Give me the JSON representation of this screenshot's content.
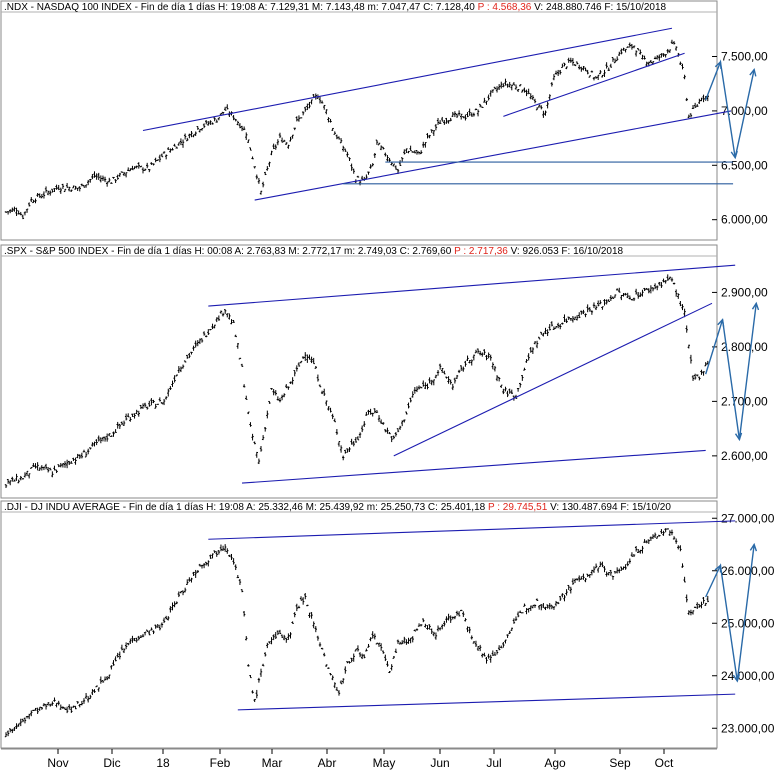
{
  "colors": {
    "price": "#000000",
    "trend": "#1c1cb0",
    "level": "#2a5c9e",
    "projection": "#2a6aa8",
    "header_red": "#e0241b"
  },
  "x_axis": {
    "labels": [
      "Nov",
      "Dic",
      "18",
      "Feb",
      "Mar",
      "Abr",
      "May",
      "Jun",
      "Jul",
      "Ago",
      "Sep",
      "Oct"
    ]
  },
  "chart_data": [
    {
      "type": "ohlc",
      "header": {
        "symbol": ".NDX",
        "name": "NASDAQ 100 INDEX",
        "period": "Fin de día 1 días",
        "h": "H: 19:08",
        "a": "A: 7.129,31",
        "m": "M: 7.143,48",
        "min": "m: 7.047,47",
        "c": "C: 7.128,40",
        "p": "P : 4.568,36",
        "v": "V: 248.880.746",
        "f": "F: 15/10/2018"
      },
      "ylim": [
        5850,
        7900
      ],
      "y_ticks": [
        {
          "v": 6000,
          "label": "6.000,00"
        },
        {
          "v": 6500,
          "label": "6.500,00"
        },
        {
          "v": 7000,
          "label": "7.000,00"
        },
        {
          "v": 7500,
          "label": "7.500,00"
        }
      ],
      "path": [
        [
          0,
          6070
        ],
        [
          5,
          6100
        ],
        [
          8,
          6030
        ],
        [
          12,
          6180
        ],
        [
          25,
          6300
        ],
        [
          35,
          6290
        ],
        [
          42,
          6400
        ],
        [
          50,
          6350
        ],
        [
          60,
          6480
        ],
        [
          68,
          6470
        ],
        [
          75,
          6600
        ],
        [
          82,
          6700
        ],
        [
          92,
          6850
        ],
        [
          100,
          6920
        ],
        [
          104,
          7010
        ],
        [
          108,
          6950
        ],
        [
          114,
          6800
        ],
        [
          118,
          6500
        ],
        [
          121,
          6250
        ],
        [
          126,
          6600
        ],
        [
          130,
          6750
        ],
        [
          134,
          6700
        ],
        [
          138,
          6900
        ],
        [
          144,
          7050
        ],
        [
          148,
          7150
        ],
        [
          152,
          7000
        ],
        [
          156,
          6800
        ],
        [
          162,
          6600
        ],
        [
          166,
          6380
        ],
        [
          170,
          6350
        ],
        [
          174,
          6500
        ],
        [
          176,
          6700
        ],
        [
          182,
          6560
        ],
        [
          186,
          6450
        ],
        [
          190,
          6650
        ],
        [
          196,
          6600
        ],
        [
          200,
          6750
        ],
        [
          206,
          6900
        ],
        [
          212,
          6950
        ],
        [
          218,
          6950
        ],
        [
          224,
          7000
        ],
        [
          230,
          7150
        ],
        [
          236,
          7250
        ],
        [
          242,
          7230
        ],
        [
          246,
          7200
        ],
        [
          252,
          7050
        ],
        [
          256,
          6980
        ],
        [
          260,
          7300
        ],
        [
          264,
          7400
        ],
        [
          268,
          7450
        ],
        [
          274,
          7400
        ],
        [
          280,
          7300
        ],
        [
          286,
          7400
        ],
        [
          292,
          7550
        ],
        [
          298,
          7600
        ],
        [
          302,
          7480
        ],
        [
          306,
          7450
        ],
        [
          312,
          7520
        ],
        [
          316,
          7600
        ],
        [
          318,
          7590
        ],
        [
          322,
          7300
        ],
        [
          324,
          6950
        ],
        [
          328,
          7050
        ],
        [
          330,
          7130
        ]
      ],
      "trendlines": [
        {
          "from": [
            65,
            6820
          ],
          "to": [
            316,
            7760
          ]
        },
        {
          "from": [
            118,
            6180
          ],
          "to": [
            344,
            7000
          ]
        },
        {
          "from": [
            236,
            6950
          ],
          "to": [
            322,
            7530
          ]
        }
      ],
      "levels": [
        {
          "from": [
            160,
            6330
          ],
          "to": [
            345,
            6330
          ]
        },
        {
          "from": [
            180,
            6530
          ],
          "to": [
            345,
            6530
          ]
        }
      ],
      "projection": [
        [
          332,
          7100
        ],
        [
          339,
          7450
        ],
        [
          346,
          6570
        ],
        [
          355,
          7380
        ]
      ]
    },
    {
      "type": "ohlc",
      "header": {
        "symbol": ".SPX",
        "name": "S&P 500 INDEX",
        "period": "Fin de día 1 días",
        "h": "H: 00:08",
        "a": "A: 2.763,83",
        "m": "M: 2.772,17",
        "min": "m: 2.749,03",
        "c": "C: 2.769,60",
        "p": "P : 2.717,36",
        "v": "V: 926.053",
        "f": "F: 16/10/2018"
      },
      "ylim": [
        2530,
        2965
      ],
      "y_ticks": [
        {
          "v": 2600,
          "label": "2.600,00"
        },
        {
          "v": 2700,
          "label": "2.700,00"
        },
        {
          "v": 2800,
          "label": "2.800,00"
        },
        {
          "v": 2900,
          "label": "2.900,00"
        }
      ],
      "path": [
        [
          0,
          2550
        ],
        [
          8,
          2560
        ],
        [
          14,
          2580
        ],
        [
          22,
          2570
        ],
        [
          30,
          2590
        ],
        [
          36,
          2600
        ],
        [
          42,
          2620
        ],
        [
          50,
          2640
        ],
        [
          58,
          2670
        ],
        [
          66,
          2690
        ],
        [
          75,
          2700
        ],
        [
          82,
          2760
        ],
        [
          90,
          2800
        ],
        [
          98,
          2840
        ],
        [
          104,
          2870
        ],
        [
          108,
          2840
        ],
        [
          112,
          2760
        ],
        [
          116,
          2650
        ],
        [
          120,
          2590
        ],
        [
          126,
          2720
        ],
        [
          130,
          2700
        ],
        [
          136,
          2740
        ],
        [
          142,
          2790
        ],
        [
          146,
          2770
        ],
        [
          150,
          2720
        ],
        [
          156,
          2660
        ],
        [
          160,
          2600
        ],
        [
          164,
          2620
        ],
        [
          168,
          2640
        ],
        [
          172,
          2680
        ],
        [
          176,
          2680
        ],
        [
          180,
          2650
        ],
        [
          184,
          2630
        ],
        [
          188,
          2660
        ],
        [
          194,
          2720
        ],
        [
          200,
          2730
        ],
        [
          206,
          2760
        ],
        [
          212,
          2730
        ],
        [
          218,
          2770
        ],
        [
          224,
          2790
        ],
        [
          230,
          2780
        ],
        [
          236,
          2720
        ],
        [
          242,
          2710
        ],
        [
          246,
          2760
        ],
        [
          250,
          2800
        ],
        [
          256,
          2830
        ],
        [
          262,
          2840
        ],
        [
          266,
          2850
        ],
        [
          272,
          2860
        ],
        [
          278,
          2870
        ],
        [
          284,
          2880
        ],
        [
          290,
          2900
        ],
        [
          296,
          2890
        ],
        [
          302,
          2900
        ],
        [
          308,
          2910
        ],
        [
          312,
          2920
        ],
        [
          316,
          2925
        ],
        [
          320,
          2880
        ],
        [
          322,
          2860
        ],
        [
          324,
          2800
        ],
        [
          326,
          2740
        ],
        [
          330,
          2750
        ],
        [
          332,
          2770
        ]
      ],
      "trendlines": [
        {
          "from": [
            96,
            2875
          ],
          "to": [
            346,
            2950
          ]
        },
        {
          "from": [
            112,
            2550
          ],
          "to": [
            332,
            2610
          ]
        },
        {
          "from": [
            184,
            2600
          ],
          "to": [
            335,
            2880
          ]
        }
      ],
      "levels": [],
      "projection": [
        [
          332,
          2750
        ],
        [
          340,
          2850
        ],
        [
          348,
          2630
        ],
        [
          356,
          2880
        ]
      ]
    },
    {
      "type": "ohlc",
      "header": {
        "symbol": ".DJI",
        "name": "DJ INDU AVERAGE",
        "period": "Fin de día 1 días",
        "h": "H: 19:08",
        "a": "A: 25.332,46",
        "m": "M: 25.439,92",
        "min": "m: 25.250,73",
        "c": "C: 25.401,18",
        "p": "P : 29.745,51",
        "v": "V: 130.487.694",
        "f": "F: 15/10/20"
      },
      "ylim": [
        22700,
        27100
      ],
      "y_ticks": [
        {
          "v": 23000,
          "label": "23.000,00"
        },
        {
          "v": 24000,
          "label": "24.000,00"
        },
        {
          "v": 25000,
          "label": "25.000,00"
        },
        {
          "v": 26000,
          "label": "26.000,00"
        },
        {
          "v": 27000,
          "label": "27.000,00"
        }
      ],
      "path": [
        [
          0,
          22900
        ],
        [
          6,
          23050
        ],
        [
          12,
          23300
        ],
        [
          18,
          23400
        ],
        [
          24,
          23500
        ],
        [
          30,
          23350
        ],
        [
          36,
          23500
        ],
        [
          42,
          23700
        ],
        [
          48,
          24000
        ],
        [
          54,
          24400
        ],
        [
          60,
          24700
        ],
        [
          66,
          24800
        ],
        [
          74,
          24950
        ],
        [
          82,
          25500
        ],
        [
          90,
          26000
        ],
        [
          98,
          26300
        ],
        [
          104,
          26500
        ],
        [
          108,
          26200
        ],
        [
          112,
          25600
        ],
        [
          115,
          24200
        ],
        [
          118,
          23500
        ],
        [
          124,
          24600
        ],
        [
          130,
          24800
        ],
        [
          134,
          24700
        ],
        [
          138,
          25300
        ],
        [
          142,
          25500
        ],
        [
          146,
          25000
        ],
        [
          150,
          24500
        ],
        [
          154,
          24000
        ],
        [
          158,
          23700
        ],
        [
          162,
          24200
        ],
        [
          166,
          24500
        ],
        [
          170,
          24300
        ],
        [
          174,
          24800
        ],
        [
          178,
          24500
        ],
        [
          182,
          24100
        ],
        [
          186,
          24600
        ],
        [
          192,
          24700
        ],
        [
          198,
          25000
        ],
        [
          204,
          24800
        ],
        [
          210,
          25100
        ],
        [
          216,
          25200
        ],
        [
          222,
          24700
        ],
        [
          228,
          24300
        ],
        [
          234,
          24500
        ],
        [
          240,
          24900
        ],
        [
          246,
          25300
        ],
        [
          252,
          25400
        ],
        [
          258,
          25300
        ],
        [
          264,
          25500
        ],
        [
          270,
          25800
        ],
        [
          276,
          25900
        ],
        [
          282,
          26100
        ],
        [
          288,
          25900
        ],
        [
          294,
          26100
        ],
        [
          300,
          26400
        ],
        [
          306,
          26600
        ],
        [
          310,
          26700
        ],
        [
          314,
          26800
        ],
        [
          318,
          26600
        ],
        [
          320,
          26400
        ],
        [
          322,
          25800
        ],
        [
          324,
          25200
        ],
        [
          328,
          25300
        ],
        [
          330,
          25400
        ]
      ],
      "trendlines": [
        {
          "from": [
            96,
            26600
          ],
          "to": [
            346,
            26950
          ]
        },
        {
          "from": [
            110,
            23350
          ],
          "to": [
            346,
            23650
          ]
        }
      ],
      "levels": [],
      "projection": [
        [
          332,
          25500
        ],
        [
          339,
          26100
        ],
        [
          347,
          23900
        ],
        [
          355,
          26500
        ]
      ]
    }
  ]
}
